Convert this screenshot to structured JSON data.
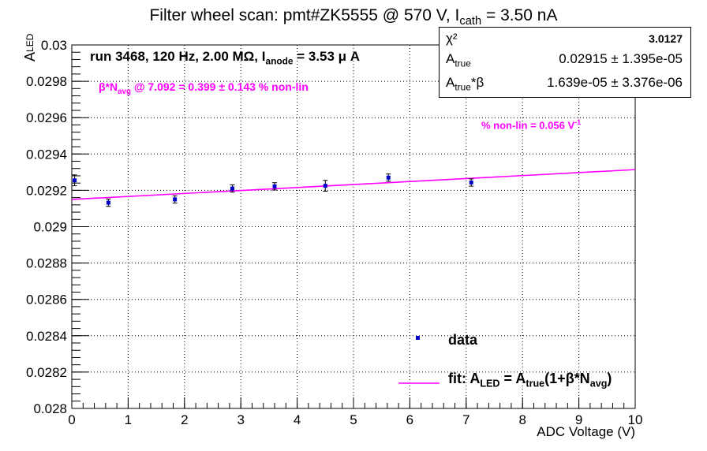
{
  "title": "Filter wheel scan: pmt#ZK5555 @   570 V, I",
  "title_sub": "cath",
  "title_tail": " = 3.50 nA",
  "stats": {
    "chi2_label": "χ²",
    "chi2_value": "3.0127",
    "atrue_label": "A",
    "atrue_sub": "true",
    "atrue_value": "0.02915 ± 1.395e-05",
    "beta_label": "A",
    "beta_sub": "true",
    "beta_tail": "*β",
    "beta_value": "1.639e-05 ± 3.376e-06"
  },
  "annotations": {
    "run": "run 3468, 120 Hz, 2.00 MΩ, I",
    "run_sub": "anode",
    "run_tail": " = 3.53 μ A",
    "nonlin_head": "β*N",
    "nonlin_sub": "avg",
    "nonlin_tail": " @ 7.092 = 0.399 ± 0.143 % non-lin",
    "slope": "% non-lin = 0.056 V",
    "slope_sup": "-1"
  },
  "legend": {
    "data_label": "data",
    "fit_label_head": "fit: A",
    "fit_sub1": "LED",
    "fit_mid": " = A",
    "fit_sub2": "true",
    "fit_mid2": "(1+β*N",
    "fit_sub3": "avg",
    "fit_tail": ")"
  },
  "colors": {
    "data": "#0000cc",
    "fit": "#ff00ff",
    "axis": "#000000",
    "grid": "#000000"
  },
  "chart_data": {
    "type": "scatter",
    "title": "Filter wheel scan: pmt#ZK5555 @   570 V, Icath = 3.50 nA",
    "xlabel": "ADC Voltage (V)",
    "ylabel": "ALED",
    "xlim": [
      0,
      10
    ],
    "ylim": [
      0.028,
      0.03
    ],
    "grid": true,
    "legend_position": "bottom-right",
    "x_ticks": [
      "0",
      "1",
      "2",
      "3",
      "4",
      "5",
      "6",
      "7",
      "8",
      "9",
      "10"
    ],
    "y_ticks": [
      "0.028",
      "0.0282",
      "0.0284",
      "0.0286",
      "0.0288",
      "0.029",
      "0.0292",
      "0.0294",
      "0.0296",
      "0.0298",
      "0.03"
    ],
    "series": [
      {
        "name": "data",
        "x": [
          0.05,
          0.65,
          1.83,
          2.85,
          3.6,
          4.5,
          5.62,
          7.09
        ],
        "y": [
          0.029255,
          0.029132,
          0.02915,
          0.02921,
          0.029222,
          0.029225,
          0.02927,
          0.029243
        ],
        "yerr": [
          3e-05,
          2e-05,
          2e-05,
          2e-05,
          2e-05,
          3e-05,
          2e-05,
          2e-05
        ]
      },
      {
        "name": "fit",
        "type": "line",
        "x": [
          0,
          10
        ],
        "y": [
          0.02915,
          0.029314
        ]
      }
    ]
  }
}
